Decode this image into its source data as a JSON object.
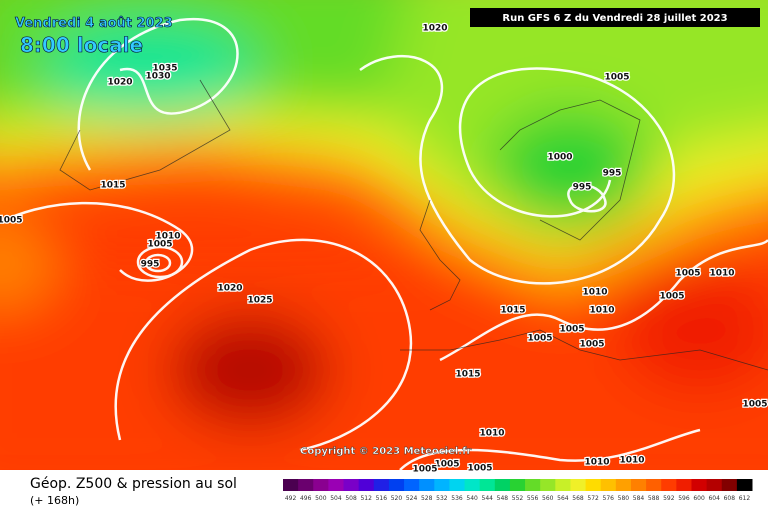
{
  "header": {
    "date": "Vendredi 4 août 2023",
    "time": "8:00 locale",
    "run": "Run GFS 6 Z du Vendredi 28 juillet 2023"
  },
  "copyright": "Copyright © 2023 Meteociel.fr",
  "footer": {
    "title": "Géop. Z500 & pression au sol",
    "lead": "(+ 168h)"
  },
  "isobar_labels": [
    1020,
    1035,
    1030,
    1020,
    1005,
    1000,
    995,
    995,
    1015,
    1005,
    1010,
    1005,
    995,
    1020,
    1025,
    1005,
    1010,
    1005,
    1010,
    1010,
    1015,
    1005,
    1005,
    1005,
    1015,
    1005,
    1010,
    1010,
    1010,
    1005,
    1005,
    1005
  ],
  "colorbar": {
    "labels": [
      492,
      496,
      500,
      504,
      508,
      512,
      516,
      520,
      524,
      528,
      532,
      536,
      540,
      544,
      548,
      552,
      556,
      560,
      564,
      568,
      572,
      576,
      580,
      584,
      588,
      592,
      596,
      600,
      604,
      608,
      612
    ],
    "colors": [
      "#4b0050",
      "#6a006e",
      "#8a0090",
      "#9a00b4",
      "#7a00c8",
      "#5000d8",
      "#2020e6",
      "#0040f0",
      "#0064ff",
      "#0090ff",
      "#00b4ff",
      "#00d4f0",
      "#00e6c8",
      "#00e696",
      "#00d264",
      "#28d232",
      "#64dc28",
      "#96e628",
      "#c8f028",
      "#f0f028",
      "#ffdc00",
      "#ffc000",
      "#ffa000",
      "#ff8000",
      "#ff6000",
      "#ff3c00",
      "#f01e00",
      "#d20000",
      "#b40000",
      "#820000",
      "#000000"
    ]
  }
}
